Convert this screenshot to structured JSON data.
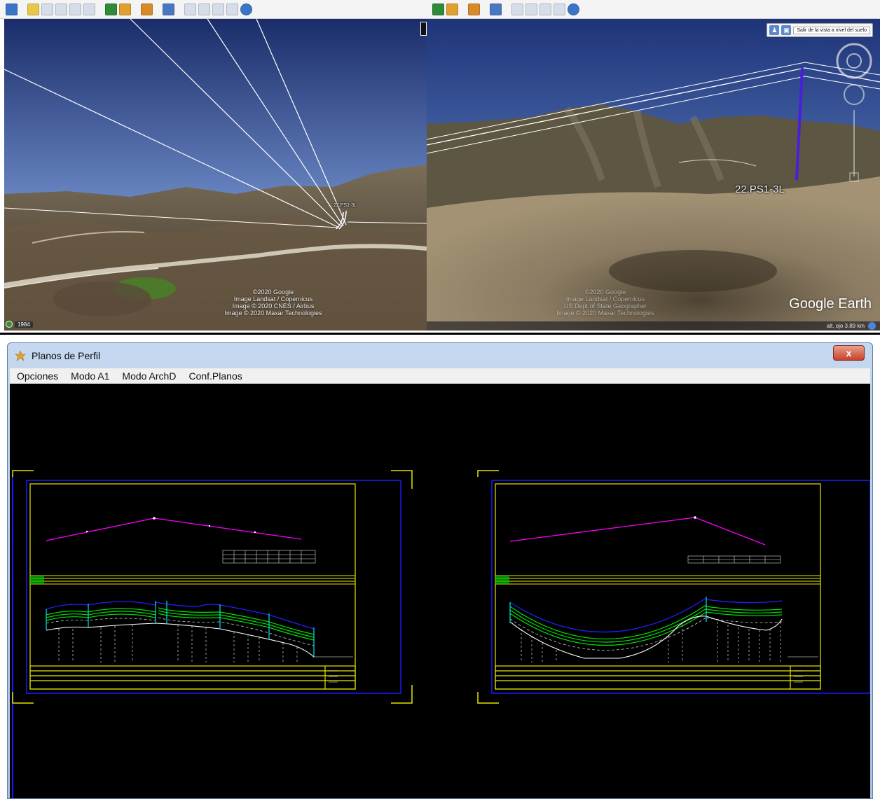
{
  "ge_left": {
    "credits": [
      "©2020 Google",
      "Image Landsat / Copernicus",
      "Image © 2020 CNES / Airbus",
      "Image © 2020 Maxar Technologies"
    ],
    "year": "1984",
    "tiny_label": "22.PS1-3L"
  },
  "ge_right": {
    "exit_label": "Salir de la vista a nivel del suelo",
    "placemark": "22.PS1-3L",
    "credits": [
      "©2020 Google",
      "Image Landsat / Copernicus",
      "US Dept of State Geographer",
      "Image © 2020 Maxar Technologies"
    ],
    "logo": "Google Earth",
    "status": "alt. ojo  3.89 km"
  },
  "window": {
    "title": "Planos de Perfil",
    "close_label": "x",
    "menu": [
      "Opciones",
      "Modo A1",
      "Modo ArchD",
      "Conf.Planos"
    ]
  },
  "colors": {
    "sheet_blue": "#1a1aff",
    "frame_yellow": "#e6e600",
    "alignment_magenta": "#ff00ff",
    "profile_green": "#00e000",
    "conductor_blue": "#2020ff",
    "tower_cyan": "#00e5e5",
    "ground_white": "#ffffff"
  }
}
